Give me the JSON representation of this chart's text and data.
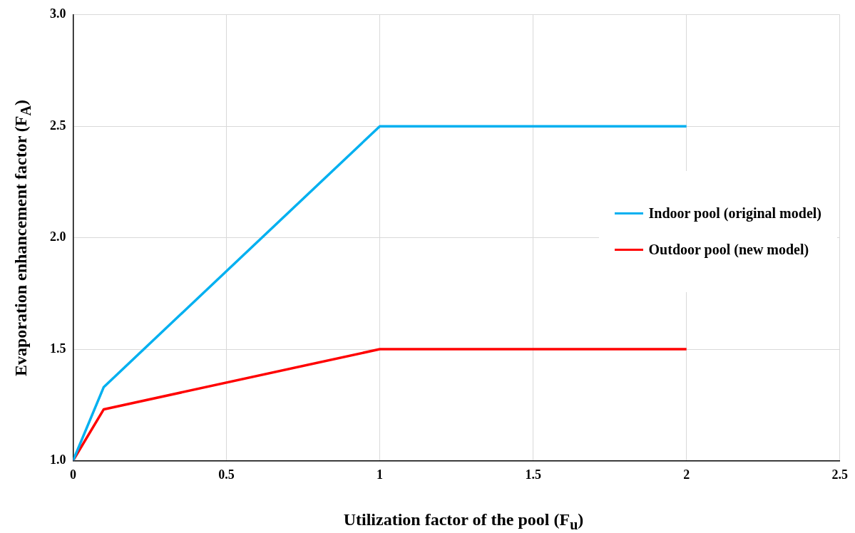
{
  "chart_data": {
    "type": "line",
    "xlabel": "Utilization factor of the pool (F$_{u}$)",
    "ylabel": "Evaporation enhancement factor (F$_{A}$)",
    "xlim": [
      0,
      2.5
    ],
    "xticks": [
      0,
      0.5,
      1,
      1.5,
      2,
      2.5
    ],
    "ylim": [
      1,
      3
    ],
    "yticks": [
      {
        "value": 1,
        "label": "1.0"
      },
      {
        "value": 1.5,
        "label": "1.5"
      },
      {
        "value": 2,
        "label": "2.0"
      },
      {
        "value": 2.5,
        "label": "2.5"
      },
      {
        "value": 3,
        "label": "3.0"
      }
    ],
    "x": [
      0,
      0.1,
      1,
      2
    ],
    "series": [
      {
        "name": "Indoor pool (original model)",
        "color": "#00b0f0",
        "values": [
          1,
          1.33,
          2.5,
          2.5
        ]
      },
      {
        "name": "Outdoor pool (new model)",
        "color": "#ff0000",
        "values": [
          1,
          1.23,
          1.5,
          1.5
        ]
      }
    ],
    "grid": true,
    "legend": "right",
    "marker": "none",
    "line_style": "solid"
  }
}
